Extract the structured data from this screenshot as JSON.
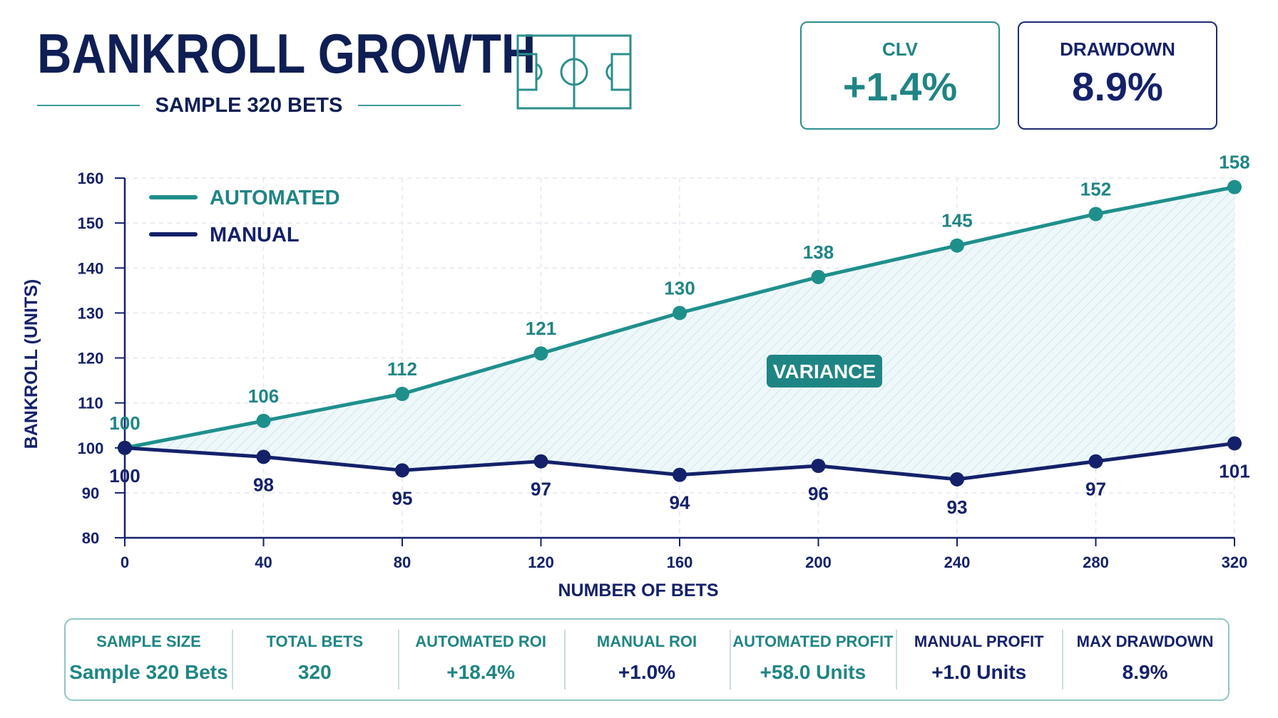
{
  "header": {
    "title": "BANKROLL GROWTH",
    "subtitle": "SAMPLE 320 BETS"
  },
  "kpis": {
    "clv": {
      "label": "CLV",
      "value": "+1.4%"
    },
    "drawdown": {
      "label": "DRAWDOWN",
      "value": "8.9%"
    }
  },
  "colors": {
    "automated": "#1f8f8c",
    "manual": "#14216a",
    "fill": "#cfe9f0"
  },
  "chart_data": {
    "type": "line",
    "xlabel": "NUMBER OF BETS",
    "ylabel": "BANKROLL (UNITS)",
    "x": [
      0,
      40,
      80,
      120,
      160,
      200,
      240,
      280,
      320
    ],
    "xticks": [
      0,
      40,
      80,
      120,
      160,
      200,
      240,
      280,
      320
    ],
    "yticks": [
      80,
      90,
      100,
      110,
      120,
      130,
      140,
      150,
      160
    ],
    "xlim": [
      0,
      320
    ],
    "ylim": [
      80,
      160
    ],
    "grid": true,
    "legend_position": "top-left",
    "annotation": "VARIANCE",
    "series": [
      {
        "name": "AUTOMATED",
        "values": [
          100,
          106,
          112,
          121,
          130,
          138,
          145,
          152,
          158
        ],
        "labels": [
          "100",
          "106",
          "112",
          "121",
          "130",
          "138",
          "145",
          "152",
          "158"
        ]
      },
      {
        "name": "MANUAL",
        "values": [
          100,
          98,
          95,
          97,
          94,
          96,
          93,
          97,
          101
        ],
        "labels": [
          "100",
          "98",
          "95",
          "97",
          "94",
          "96",
          "93",
          "97",
          "101"
        ]
      }
    ]
  },
  "stats": [
    {
      "label": "SAMPLE SIZE",
      "value": "Sample 320 Bets",
      "tone": "teal"
    },
    {
      "label": "TOTAL BETS",
      "value": "320",
      "tone": "teal"
    },
    {
      "label": "AUTOMATED ROI",
      "value": "+18.4%",
      "tone": "teal"
    },
    {
      "label": "MANUAL ROI",
      "value": "+1.0%",
      "tone": "teal-navy"
    },
    {
      "label": "AUTOMATED PROFIT",
      "value": "+58.0 Units",
      "tone": "teal"
    },
    {
      "label": "MANUAL PROFIT",
      "value": "+1.0 Units",
      "tone": "navy"
    },
    {
      "label": "MAX DRAWDOWN",
      "value": "8.9%",
      "tone": "navy"
    }
  ]
}
